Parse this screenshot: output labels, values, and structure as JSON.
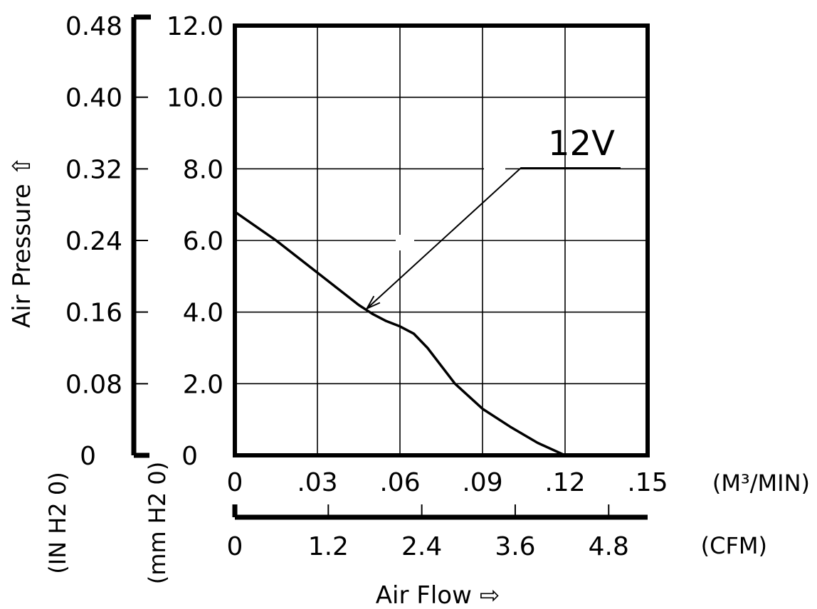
{
  "chart_data": {
    "type": "line",
    "title": "",
    "ylabel": "Air Pressure ⇧",
    "xlabel": "Air Flow ⇨",
    "y_left": {
      "unit_label": "(IN H2 0)",
      "ticks": [
        "0",
        "0.08",
        "0.16",
        "0.24",
        "0.32",
        "0.40",
        "0.48"
      ],
      "range": [
        0,
        0.48
      ]
    },
    "y_right": {
      "unit_label": "(mm H2 0)",
      "ticks": [
        "0",
        "2.0",
        "4.0",
        "6.0",
        "8.0",
        "10.0",
        "12.0"
      ],
      "range": [
        0,
        12
      ]
    },
    "x_top": {
      "unit_label": "(M³/MIN)",
      "ticks": [
        "0",
        ".03",
        ".06",
        ".09",
        ".12",
        ".15"
      ],
      "range": [
        0,
        0.15
      ]
    },
    "x_bottom": {
      "unit_label": "(CFM)",
      "ticks": [
        "0",
        "1.2",
        "2.4",
        "3.6",
        "4.8"
      ],
      "range": [
        0,
        5.3
      ]
    },
    "grid": true,
    "series": [
      {
        "name": "12V",
        "x": [
          0,
          0.015,
          0.03,
          0.045,
          0.05,
          0.055,
          0.06,
          0.065,
          0.07,
          0.075,
          0.08,
          0.09,
          0.1,
          0.11,
          0.12
        ],
        "y": [
          6.8,
          6.0,
          5.1,
          4.2,
          3.95,
          3.75,
          3.6,
          3.4,
          3.0,
          2.5,
          2.0,
          1.3,
          0.8,
          0.35,
          0
        ]
      }
    ],
    "annotation": {
      "text": "12V",
      "points_to_series": "12V",
      "x": 0.048,
      "y": 4.1
    }
  }
}
